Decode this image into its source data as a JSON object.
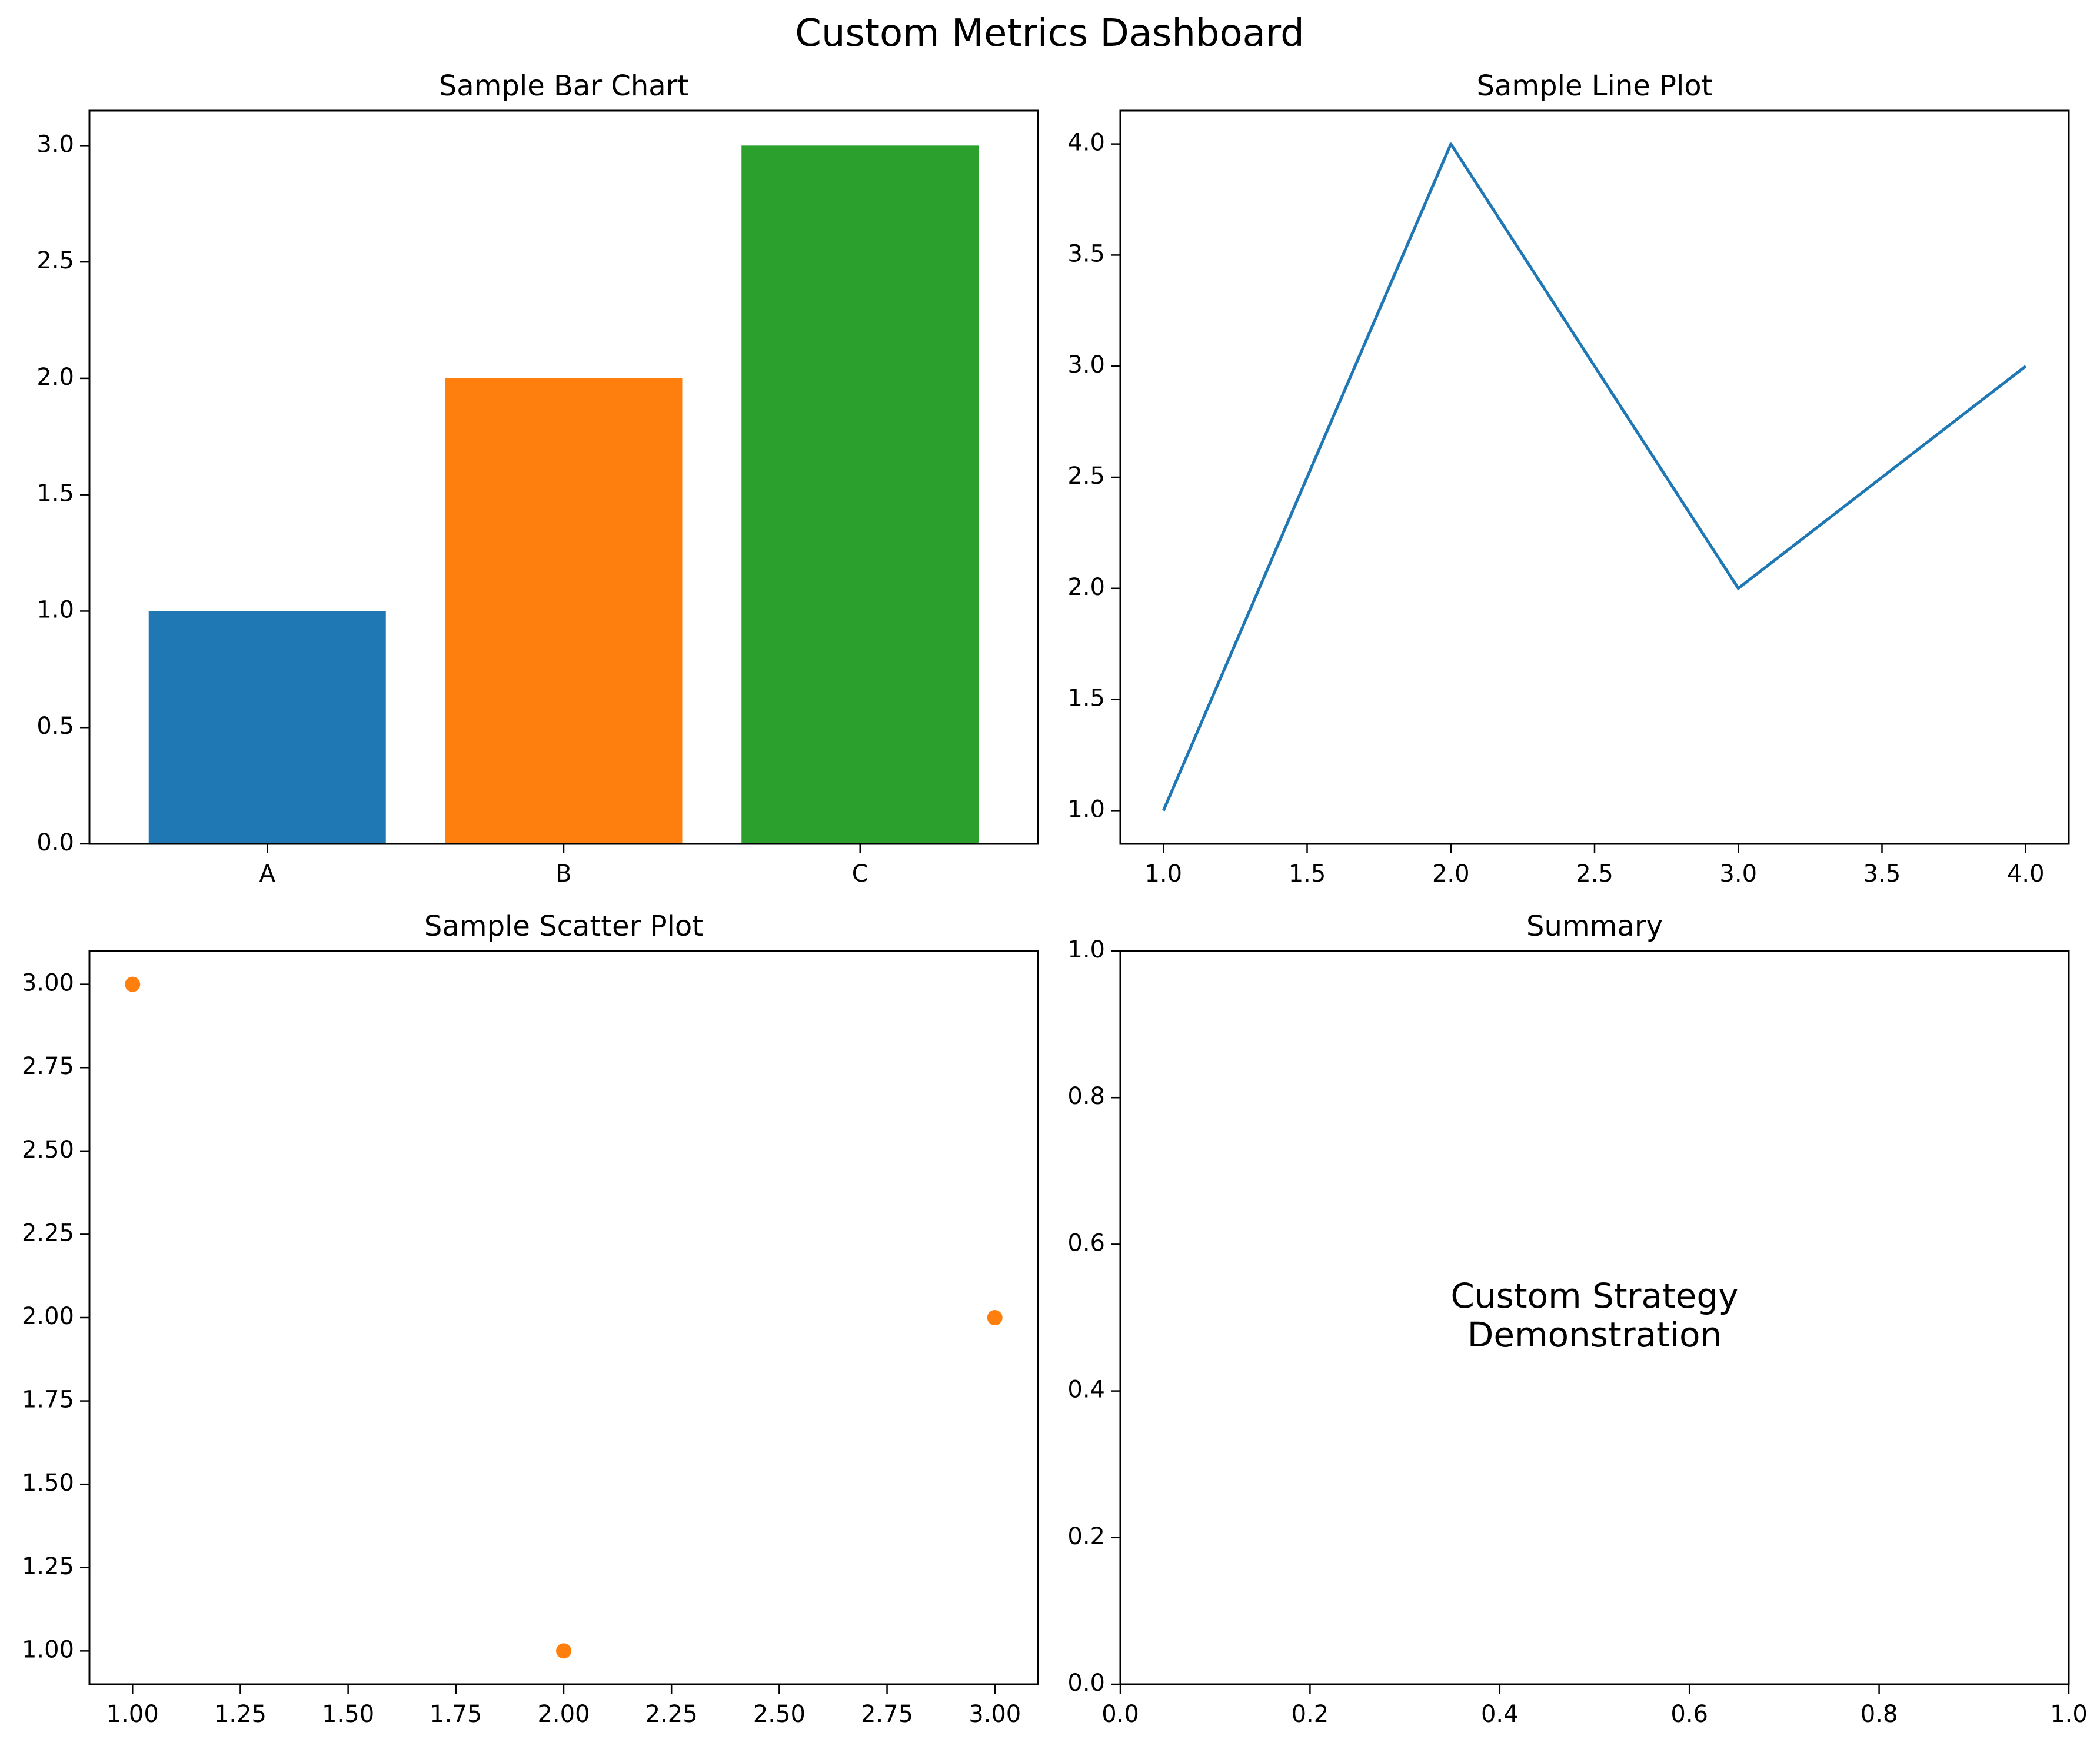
{
  "figure_title": "Custom Metrics Dashboard",
  "colors": {
    "blue": "#1f77b4",
    "orange": "#ff7f0e",
    "green": "#2ca02c"
  },
  "chart_data": [
    {
      "type": "bar",
      "title": "Sample Bar Chart",
      "xlabel": "",
      "ylabel": "",
      "categories": [
        "A",
        "B",
        "C"
      ],
      "values": [
        1,
        2,
        3
      ],
      "bar_colors": [
        "#1f77b4",
        "#ff7f0e",
        "#2ca02c"
      ],
      "ylim": [
        0,
        3.15
      ],
      "yticks": [
        0.0,
        0.5,
        1.0,
        1.5,
        2.0,
        2.5,
        3.0
      ],
      "ytick_labels": [
        "0.0",
        "0.5",
        "1.0",
        "1.5",
        "2.0",
        "2.5",
        "3.0"
      ],
      "grid": false,
      "legend": "none"
    },
    {
      "type": "line",
      "title": "Sample Line Plot",
      "xlabel": "",
      "ylabel": "",
      "x": [
        1,
        2,
        3,
        4
      ],
      "y": [
        1,
        4,
        2,
        3
      ],
      "color": "#1f77b4",
      "xlim": [
        0.85,
        4.15
      ],
      "ylim": [
        0.85,
        4.15
      ],
      "xticks": [
        1.0,
        1.5,
        2.0,
        2.5,
        3.0,
        3.5,
        4.0
      ],
      "xtick_labels": [
        "1.0",
        "1.5",
        "2.0",
        "2.5",
        "3.0",
        "3.5",
        "4.0"
      ],
      "yticks": [
        1.0,
        1.5,
        2.0,
        2.5,
        3.0,
        3.5,
        4.0
      ],
      "ytick_labels": [
        "1.0",
        "1.5",
        "2.0",
        "2.5",
        "3.0",
        "3.5",
        "4.0"
      ],
      "grid": false,
      "legend": "none"
    },
    {
      "type": "scatter",
      "title": "Sample Scatter Plot",
      "xlabel": "",
      "ylabel": "",
      "x": [
        1,
        2,
        3
      ],
      "y": [
        3,
        1,
        2
      ],
      "color": "#ff7f0e",
      "xlim": [
        0.9,
        3.1
      ],
      "ylim": [
        0.9,
        3.1
      ],
      "xticks": [
        1.0,
        1.25,
        1.5,
        1.75,
        2.0,
        2.25,
        2.5,
        2.75,
        3.0
      ],
      "xtick_labels": [
        "1.00",
        "1.25",
        "1.50",
        "1.75",
        "2.00",
        "2.25",
        "2.50",
        "2.75",
        "3.00"
      ],
      "yticks": [
        1.0,
        1.25,
        1.5,
        1.75,
        2.0,
        2.25,
        2.5,
        2.75,
        3.0
      ],
      "ytick_labels": [
        "1.00",
        "1.25",
        "1.50",
        "1.75",
        "2.00",
        "2.25",
        "2.50",
        "2.75",
        "3.00"
      ],
      "grid": false,
      "legend": "none"
    },
    {
      "type": "text",
      "title": "Summary",
      "xlabel": "",
      "ylabel": "",
      "text_lines": [
        "Custom Strategy",
        "Demonstration"
      ],
      "xlim": [
        0,
        1
      ],
      "ylim": [
        0,
        1
      ],
      "xticks": [
        0.0,
        0.2,
        0.4,
        0.6,
        0.8,
        1.0
      ],
      "xtick_labels": [
        "0.0",
        "0.2",
        "0.4",
        "0.6",
        "0.8",
        "1.0"
      ],
      "yticks": [
        0.0,
        0.2,
        0.4,
        0.6,
        0.8,
        1.0
      ],
      "ytick_labels": [
        "0.0",
        "0.2",
        "0.4",
        "0.6",
        "0.8",
        "1.0"
      ],
      "grid": false,
      "legend": "none"
    }
  ]
}
